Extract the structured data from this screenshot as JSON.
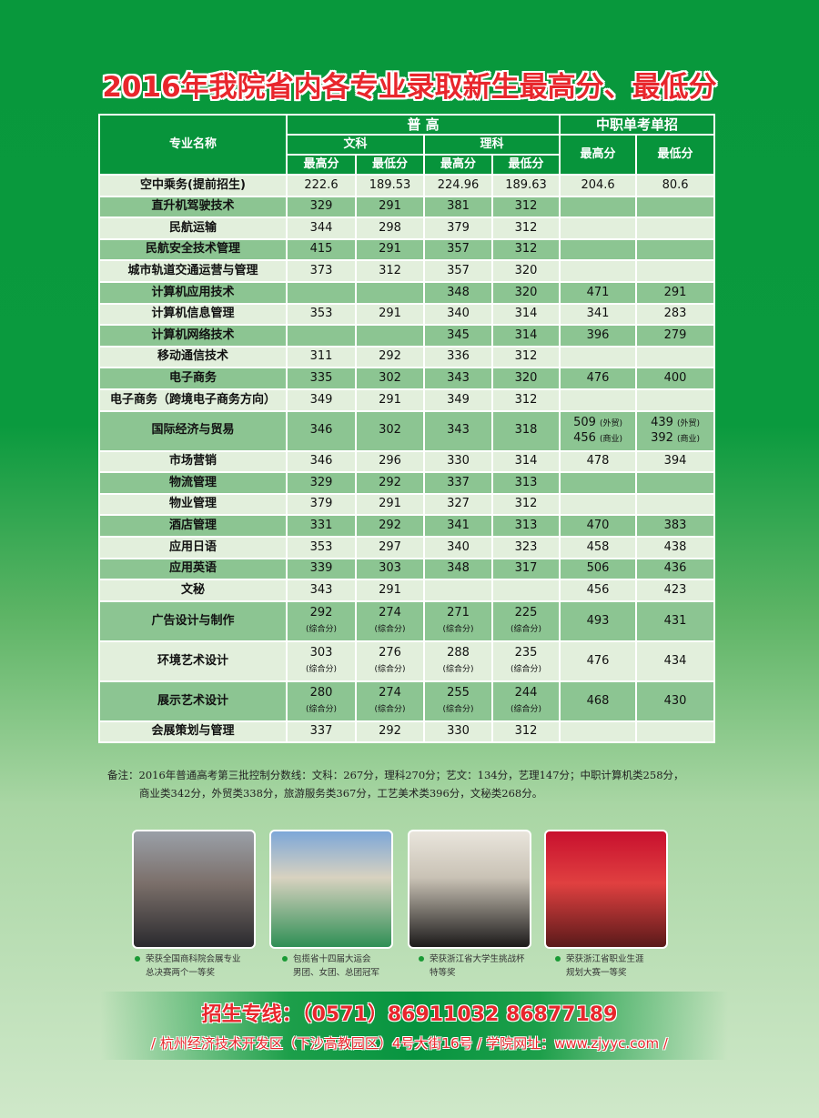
{
  "title": "2016年我院省内各专业录取新生最高分、最低分",
  "table": {
    "h_name": "专业名称",
    "h_general": "普 高",
    "h_vocational": "中职单考单招",
    "h_arts": "文科",
    "h_science": "理科",
    "h_max": "最高分",
    "h_min": "最低分",
    "rows": [
      {
        "name": "空中乘务(提前招生)",
        "cells": [
          [
            [
              "222.6"
            ]
          ],
          [
            [
              "189.53"
            ]
          ],
          [
            [
              "224.96"
            ]
          ],
          [
            [
              "189.63"
            ]
          ],
          [
            [
              "204.6"
            ]
          ],
          [
            [
              "80.6"
            ]
          ]
        ]
      },
      {
        "name": "直升机驾驶技术",
        "cells": [
          [
            [
              "329"
            ]
          ],
          [
            [
              "291"
            ]
          ],
          [
            [
              "381"
            ]
          ],
          [
            [
              "312"
            ]
          ],
          [],
          []
        ]
      },
      {
        "name": "民航运输",
        "cells": [
          [
            [
              "344"
            ]
          ],
          [
            [
              "298"
            ]
          ],
          [
            [
              "379"
            ]
          ],
          [
            [
              "312"
            ]
          ],
          [],
          []
        ]
      },
      {
        "name": "民航安全技术管理",
        "cells": [
          [
            [
              "415"
            ]
          ],
          [
            [
              "291"
            ]
          ],
          [
            [
              "357"
            ]
          ],
          [
            [
              "312"
            ]
          ],
          [],
          []
        ]
      },
      {
        "name": "城市轨道交通运营与管理",
        "cells": [
          [
            [
              "373"
            ]
          ],
          [
            [
              "312"
            ]
          ],
          [
            [
              "357"
            ]
          ],
          [
            [
              "320"
            ]
          ],
          [],
          []
        ]
      },
      {
        "name": "计算机应用技术",
        "cells": [
          [],
          [],
          [
            [
              "348"
            ]
          ],
          [
            [
              "320"
            ]
          ],
          [
            [
              "471"
            ]
          ],
          [
            [
              "291"
            ]
          ]
        ]
      },
      {
        "name": "计算机信息管理",
        "cells": [
          [
            [
              "353"
            ]
          ],
          [
            [
              "291"
            ]
          ],
          [
            [
              "340"
            ]
          ],
          [
            [
              "314"
            ]
          ],
          [
            [
              "341"
            ]
          ],
          [
            [
              "283"
            ]
          ]
        ]
      },
      {
        "name": "计算机网络技术",
        "cells": [
          [],
          [],
          [
            [
              "345"
            ]
          ],
          [
            [
              "314"
            ]
          ],
          [
            [
              "396"
            ]
          ],
          [
            [
              "279"
            ]
          ]
        ]
      },
      {
        "name": "移动通信技术",
        "cells": [
          [
            [
              "311"
            ]
          ],
          [
            [
              "292"
            ]
          ],
          [
            [
              "336"
            ]
          ],
          [
            [
              "312"
            ]
          ],
          [],
          []
        ]
      },
      {
        "name": "电子商务",
        "cells": [
          [
            [
              "335"
            ]
          ],
          [
            [
              "302"
            ]
          ],
          [
            [
              "343"
            ]
          ],
          [
            [
              "320"
            ]
          ],
          [
            [
              "476"
            ]
          ],
          [
            [
              "400"
            ]
          ]
        ]
      },
      {
        "name": "电子商务（跨境电子商务方向）",
        "cells": [
          [
            [
              "349"
            ]
          ],
          [
            [
              "291"
            ]
          ],
          [
            [
              "349"
            ]
          ],
          [
            [
              "312"
            ]
          ],
          [],
          []
        ]
      },
      {
        "name": "国际经济与贸易",
        "cells": [
          [
            [
              "346"
            ]
          ],
          [
            [
              "302"
            ]
          ],
          [
            [
              "343"
            ]
          ],
          [
            [
              "318"
            ]
          ],
          [
            [
              "509",
              "(外贸)"
            ],
            [
              "456",
              "(商业)"
            ]
          ],
          [
            [
              "439",
              "(外贸)"
            ],
            [
              "392",
              "(商业)"
            ]
          ]
        ]
      },
      {
        "name": "市场营销",
        "cells": [
          [
            [
              "346"
            ]
          ],
          [
            [
              "296"
            ]
          ],
          [
            [
              "330"
            ]
          ],
          [
            [
              "314"
            ]
          ],
          [
            [
              "478"
            ]
          ],
          [
            [
              "394"
            ]
          ]
        ]
      },
      {
        "name": "物流管理",
        "cells": [
          [
            [
              "329"
            ]
          ],
          [
            [
              "292"
            ]
          ],
          [
            [
              "337"
            ]
          ],
          [
            [
              "313"
            ]
          ],
          [],
          []
        ]
      },
      {
        "name": "物业管理",
        "cells": [
          [
            [
              "379"
            ]
          ],
          [
            [
              "291"
            ]
          ],
          [
            [
              "327"
            ]
          ],
          [
            [
              "312"
            ]
          ],
          [],
          []
        ]
      },
      {
        "name": "酒店管理",
        "cells": [
          [
            [
              "331"
            ]
          ],
          [
            [
              "292"
            ]
          ],
          [
            [
              "341"
            ]
          ],
          [
            [
              "313"
            ]
          ],
          [
            [
              "470"
            ]
          ],
          [
            [
              "383"
            ]
          ]
        ]
      },
      {
        "name": "应用日语",
        "cells": [
          [
            [
              "353"
            ]
          ],
          [
            [
              "297"
            ]
          ],
          [
            [
              "340"
            ]
          ],
          [
            [
              "323"
            ]
          ],
          [
            [
              "458"
            ]
          ],
          [
            [
              "438"
            ]
          ]
        ]
      },
      {
        "name": "应用英语",
        "cells": [
          [
            [
              "339"
            ]
          ],
          [
            [
              "303"
            ]
          ],
          [
            [
              "348"
            ]
          ],
          [
            [
              "317"
            ]
          ],
          [
            [
              "506"
            ]
          ],
          [
            [
              "436"
            ]
          ]
        ]
      },
      {
        "name": "文秘",
        "cells": [
          [
            [
              "343"
            ]
          ],
          [
            [
              "291"
            ]
          ],
          [],
          [],
          [
            [
              "456"
            ]
          ],
          [
            [
              "423"
            ]
          ]
        ]
      },
      {
        "name": "广告设计与制作",
        "cells": [
          [
            [
              "292"
            ],
            [
              "(综合分)"
            ]
          ],
          [
            [
              "274"
            ],
            [
              "(综合分)"
            ]
          ],
          [
            [
              "271"
            ],
            [
              "(综合分)"
            ]
          ],
          [
            [
              "225"
            ],
            [
              "(综合分)"
            ]
          ],
          [
            [
              "493"
            ]
          ],
          [
            [
              "431"
            ]
          ]
        ]
      },
      {
        "name": "环境艺术设计",
        "cells": [
          [
            [
              "303"
            ],
            [
              "(综合分)"
            ]
          ],
          [
            [
              "276"
            ],
            [
              "(综合分)"
            ]
          ],
          [
            [
              "288"
            ],
            [
              "(综合分)"
            ]
          ],
          [
            [
              "235"
            ],
            [
              "(综合分)"
            ]
          ],
          [
            [
              "476"
            ]
          ],
          [
            [
              "434"
            ]
          ]
        ]
      },
      {
        "name": "展示艺术设计",
        "cells": [
          [
            [
              "280"
            ],
            [
              "(综合分)"
            ]
          ],
          [
            [
              "274"
            ],
            [
              "(综合分)"
            ]
          ],
          [
            [
              "255"
            ],
            [
              "(综合分)"
            ]
          ],
          [
            [
              "244"
            ],
            [
              "(综合分)"
            ]
          ],
          [
            [
              "468"
            ]
          ],
          [
            [
              "430"
            ]
          ]
        ]
      },
      {
        "name": "会展策划与管理",
        "cells": [
          [
            [
              "337"
            ]
          ],
          [
            [
              "292"
            ]
          ],
          [
            [
              "330"
            ]
          ],
          [
            [
              "312"
            ]
          ],
          [],
          []
        ]
      }
    ]
  },
  "notes": {
    "line1": "备注：2016年普通高考第三批控制分数线：文科：267分，理科270分；艺文：134分，艺理147分；中职计算机类258分，",
    "line2": "商业类342分，外贸类338分，旅游服务类367分，工艺美术类396分，文秘类268分。"
  },
  "photos": [
    {
      "caption1": "荣获全国商科院会展专业",
      "caption2": "总决赛两个一等奖"
    },
    {
      "caption1": "包揽省十四届大运会",
      "caption2": "男团、女团、总团冠军"
    },
    {
      "caption1": "荣获浙江省大学生挑战杯",
      "caption2": "特等奖"
    },
    {
      "caption1": "荣获浙江省职业生涯",
      "caption2": "规划大赛一等奖"
    }
  ],
  "contact": {
    "hotline": "招生专线：（0571）86911032  86877189",
    "address": "/ 杭州经济技术开发区（下沙高教园区）4号大街16号 / 学院网址：www.zjyyc.com /"
  },
  "colors": {
    "header": "#07943b",
    "row_light": "#e2efdc",
    "row_dark": "#8cc592",
    "title": "#e8262c"
  }
}
